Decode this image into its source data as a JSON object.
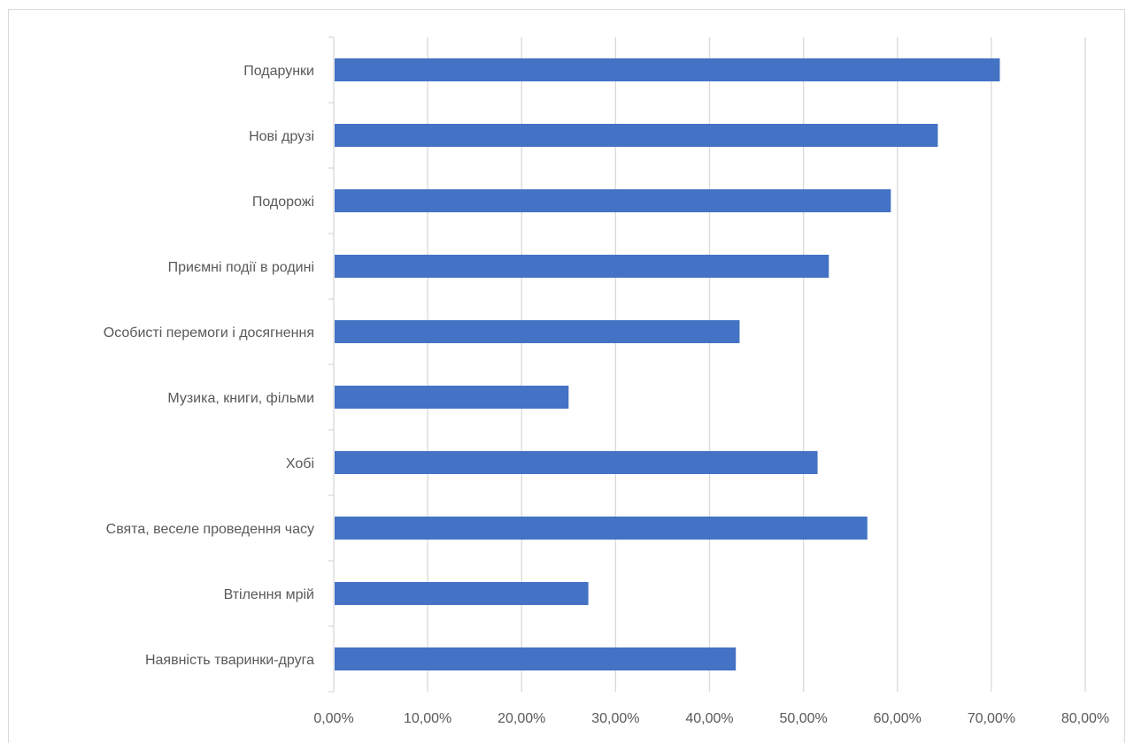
{
  "chart_data": {
    "type": "bar",
    "orientation": "horizontal",
    "categories": [
      "Подарунки",
      "Нові друзі",
      "Подорожі",
      "Приємні події в родині",
      "Особисті перемоги і досягнення",
      "Музика, книги, фільми",
      "Хобі",
      "Свята, веселе проведення часу",
      "Втілення мрій",
      "Наявність тваринки-друга"
    ],
    "values": [
      0.709,
      0.643,
      0.593,
      0.527,
      0.432,
      0.25,
      0.515,
      0.568,
      0.271,
      0.428
    ],
    "xlim": [
      0,
      0.8
    ],
    "x_ticks": [
      0,
      0.1,
      0.2,
      0.3,
      0.4,
      0.5,
      0.6,
      0.7,
      0.8
    ],
    "x_tick_labels": [
      "0,00%",
      "10,00%",
      "20,00%",
      "30,00%",
      "40,00%",
      "50,00%",
      "60,00%",
      "70,00%",
      "80,00%"
    ],
    "grid": "vertical",
    "bar_color": "#4472C4",
    "grid_color": "#d9d9d9",
    "title": "",
    "xlabel": "",
    "ylabel": ""
  }
}
